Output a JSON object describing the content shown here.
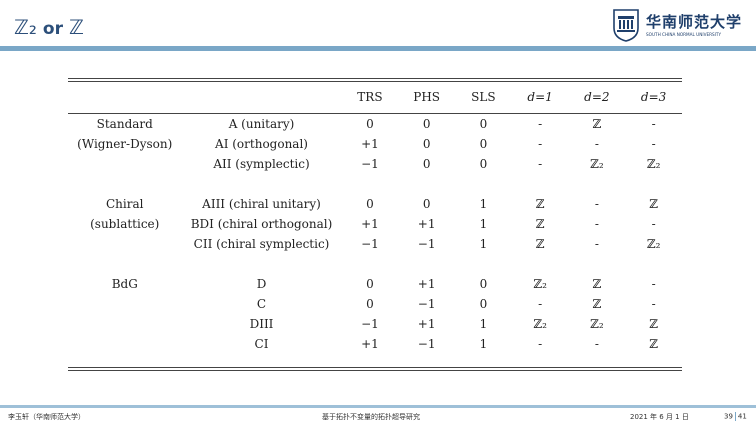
{
  "slide": {
    "title_a": "ℤ₂",
    "title_or": "or",
    "title_b": "ℤ",
    "logo_cn": "华南师范大学",
    "logo_en": "SOUTH CHINA NORMAL UNIVERSITY"
  },
  "table": {
    "headers": [
      "TRS",
      "PHS",
      "SLS",
      "d=1",
      "d=2",
      "d=3"
    ],
    "rows": [
      {
        "cat": "Standard",
        "name": "A (unitary)",
        "trs": "0",
        "phs": "0",
        "sls": "0",
        "d1": "-",
        "d2": "ℤ",
        "d3": "-"
      },
      {
        "cat": "(Wigner-Dyson)",
        "name": "AI (orthogonal)",
        "trs": "+1",
        "phs": "0",
        "sls": "0",
        "d1": "-",
        "d2": "-",
        "d3": "-"
      },
      {
        "cat": "",
        "name": "AII (symplectic)",
        "trs": "−1",
        "phs": "0",
        "sls": "0",
        "d1": "-",
        "d2": "ℤ₂",
        "d3": "ℤ₂"
      },
      {
        "cat": "Chiral",
        "name": "AIII (chiral unitary)",
        "trs": "0",
        "phs": "0",
        "sls": "1",
        "d1": "ℤ",
        "d2": "-",
        "d3": "ℤ"
      },
      {
        "cat": "(sublattice)",
        "name": "BDI (chiral orthogonal)",
        "trs": "+1",
        "phs": "+1",
        "sls": "1",
        "d1": "ℤ",
        "d2": "-",
        "d3": "-"
      },
      {
        "cat": "",
        "name": "CII (chiral symplectic)",
        "trs": "−1",
        "phs": "−1",
        "sls": "1",
        "d1": "ℤ",
        "d2": "-",
        "d3": "ℤ₂"
      },
      {
        "cat": "BdG",
        "name": "D",
        "trs": "0",
        "phs": "+1",
        "sls": "0",
        "d1": "ℤ₂",
        "d2": "ℤ",
        "d3": "-"
      },
      {
        "cat": "",
        "name": "C",
        "trs": "0",
        "phs": "−1",
        "sls": "0",
        "d1": "-",
        "d2": "ℤ",
        "d3": "-"
      },
      {
        "cat": "",
        "name": "DIII",
        "trs": "−1",
        "phs": "+1",
        "sls": "1",
        "d1": "ℤ₂",
        "d2": "ℤ₂",
        "d3": "ℤ"
      },
      {
        "cat": "",
        "name": "CI",
        "trs": "+1",
        "phs": "−1",
        "sls": "1",
        "d1": "-",
        "d2": "-",
        "d3": "ℤ"
      }
    ]
  },
  "footer": {
    "author": "李玉轩（华南师范大学）",
    "topic": "基于拓扑不变量的拓扑超导研究",
    "date": "2021 年 6 月 1 日",
    "page": "39",
    "total": "41"
  },
  "colors": {
    "accent": "#7aa7c7",
    "title": "#2c4f7a"
  }
}
